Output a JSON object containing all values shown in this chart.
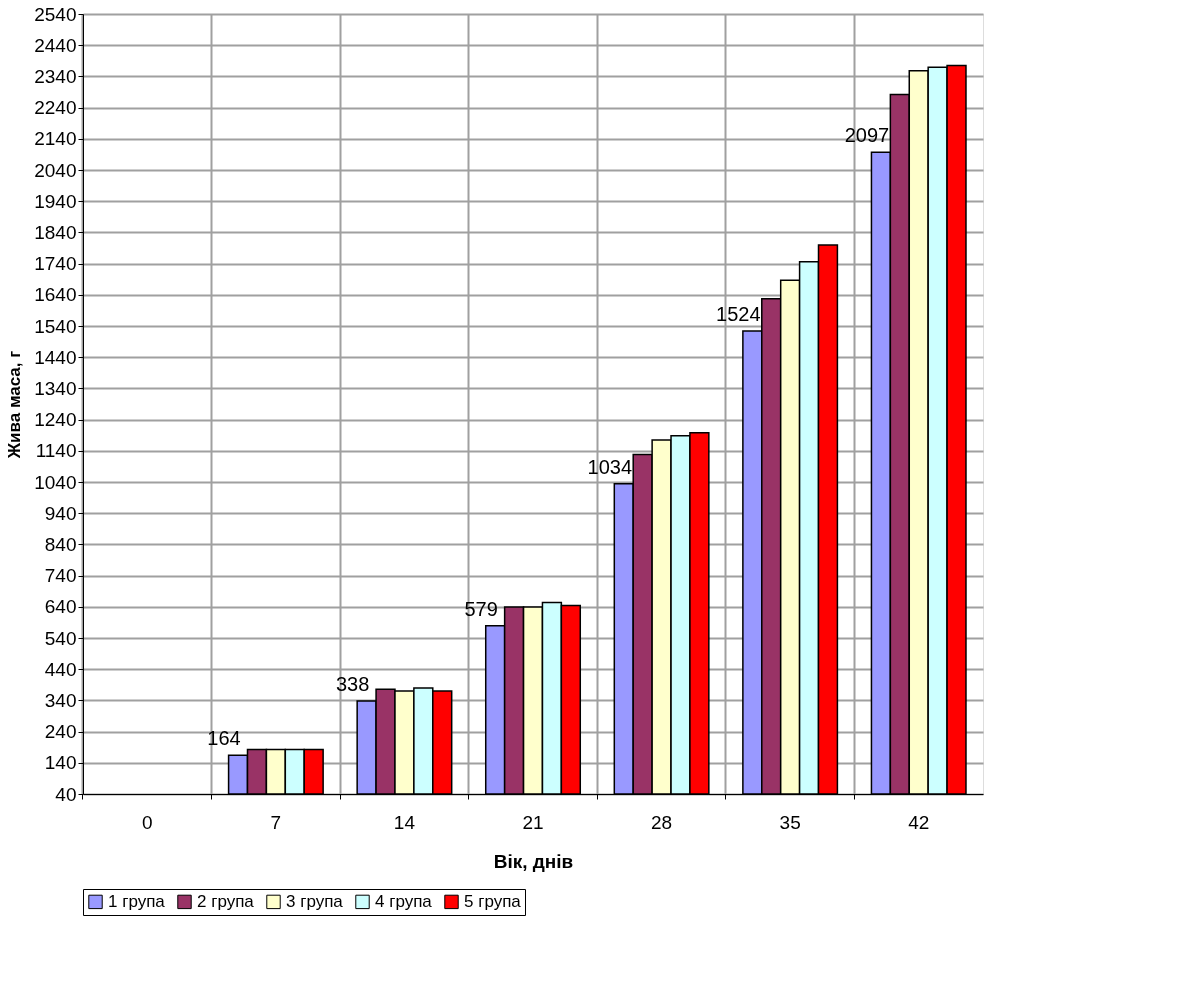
{
  "chart_data": {
    "type": "bar",
    "xlabel": "Вік, днів",
    "ylabel": "Жива маса, г",
    "categories": [
      "0",
      "7",
      "14",
      "21",
      "28",
      "35",
      "42"
    ],
    "series": [
      {
        "name": "1 група",
        "color": "#9999ff",
        "values": [
          null,
          164,
          338,
          579,
          1034,
          1524,
          2097
        ],
        "value_labels": [
          null,
          "164",
          "338",
          "579",
          "1034",
          "1524",
          "2097"
        ]
      },
      {
        "name": "2 група",
        "color": "#993366",
        "values": [
          null,
          183,
          376,
          639,
          1128,
          1627,
          2282
        ]
      },
      {
        "name": "3 група",
        "color": "#ffffcc",
        "values": [
          null,
          183,
          370,
          639,
          1175,
          1687,
          2358
        ]
      },
      {
        "name": "4 група",
        "color": "#ccffff",
        "values": [
          null,
          183,
          380,
          654,
          1188,
          1746,
          2369
        ]
      },
      {
        "name": "5 група",
        "color": "#ff0000",
        "values": [
          null,
          183,
          370,
          644,
          1198,
          1800,
          2375
        ]
      }
    ],
    "ylim": [
      40,
      2540
    ],
    "yticks": [
      40,
      140,
      240,
      340,
      440,
      540,
      640,
      740,
      840,
      940,
      1040,
      1140,
      1240,
      1340,
      1440,
      1540,
      1640,
      1740,
      1840,
      1940,
      2040,
      2140,
      2240,
      2340,
      2440,
      2540
    ],
    "grid": true,
    "legend": "bottom"
  }
}
